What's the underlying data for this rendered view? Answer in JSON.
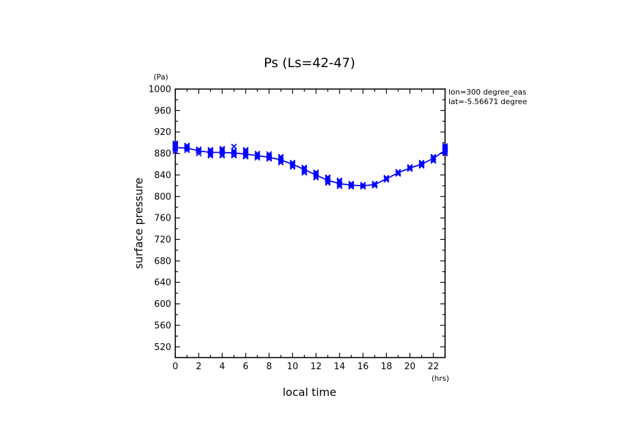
{
  "chart_data": {
    "type": "line",
    "title": "Ps (Ls=42-47)",
    "xlabel": "local time",
    "ylabel": "surface pressure",
    "xunit": "(hrs)",
    "yunit": "(Pa)",
    "xlim": [
      0,
      23
    ],
    "ylim": [
      500,
      1000
    ],
    "xticks": [
      0,
      2,
      4,
      6,
      8,
      10,
      12,
      14,
      16,
      18,
      20,
      22
    ],
    "yticks": [
      520,
      560,
      600,
      640,
      680,
      720,
      760,
      800,
      840,
      880,
      920,
      960,
      1000
    ],
    "annotations": [
      "lon=300 degree_eas",
      "lat=-5.56671 degree"
    ],
    "grid": false,
    "series_color": "#0000ff",
    "line": {
      "x": [
        0,
        1,
        2,
        3,
        4,
        5,
        6,
        7,
        8,
        9,
        10,
        11,
        12,
        13,
        14,
        15,
        16,
        17,
        18,
        19,
        20,
        21,
        22,
        23
      ],
      "y": [
        891,
        890,
        885,
        882,
        882,
        881,
        879,
        876,
        873,
        868,
        860,
        850,
        840,
        830,
        824,
        821,
        820,
        822,
        833,
        844,
        853,
        860,
        871,
        886
      ]
    },
    "markers": [
      {
        "x": 0,
        "y": [
          884,
          888,
          891,
          893,
          895,
          897,
          899
        ]
      },
      {
        "x": 1,
        "y": [
          886,
          889,
          891,
          893,
          895
        ]
      },
      {
        "x": 2,
        "y": [
          880,
          884,
          886,
          888
        ]
      },
      {
        "x": 3,
        "y": [
          876,
          878,
          881,
          883,
          885,
          887
        ]
      },
      {
        "x": 4,
        "y": [
          876,
          878,
          882,
          885,
          887,
          889
        ]
      },
      {
        "x": 5,
        "y": [
          876,
          878,
          880,
          882,
          885,
          893
        ]
      },
      {
        "x": 6,
        "y": [
          874,
          876,
          879,
          882,
          885,
          887
        ]
      },
      {
        "x": 7,
        "y": [
          872,
          875,
          877,
          880
        ]
      },
      {
        "x": 8,
        "y": [
          870,
          872,
          874,
          876,
          879
        ]
      },
      {
        "x": 9,
        "y": [
          863,
          866,
          869,
          872,
          874
        ]
      },
      {
        "x": 10,
        "y": [
          855,
          858,
          861,
          863
        ]
      },
      {
        "x": 11,
        "y": [
          844,
          847,
          850,
          852,
          854
        ]
      },
      {
        "x": 12,
        "y": [
          835,
          838,
          841,
          843,
          845
        ]
      },
      {
        "x": 13,
        "y": [
          825,
          828,
          831,
          834,
          836
        ]
      },
      {
        "x": 14,
        "y": [
          819,
          822,
          825,
          828,
          830
        ]
      },
      {
        "x": 15,
        "y": [
          818,
          820,
          822,
          824
        ]
      },
      {
        "x": 16,
        "y": [
          818,
          820,
          822
        ]
      },
      {
        "x": 17,
        "y": [
          820,
          822,
          824
        ]
      },
      {
        "x": 18,
        "y": [
          831,
          833,
          835
        ]
      },
      {
        "x": 19,
        "y": [
          842,
          844,
          846
        ]
      },
      {
        "x": 20,
        "y": [
          851,
          853,
          855
        ]
      },
      {
        "x": 21,
        "y": [
          857,
          859,
          861,
          863
        ]
      },
      {
        "x": 22,
        "y": [
          866,
          869,
          872,
          874
        ]
      },
      {
        "x": 23,
        "y": [
          880,
          883,
          886,
          888,
          890,
          892,
          894
        ]
      }
    ]
  }
}
